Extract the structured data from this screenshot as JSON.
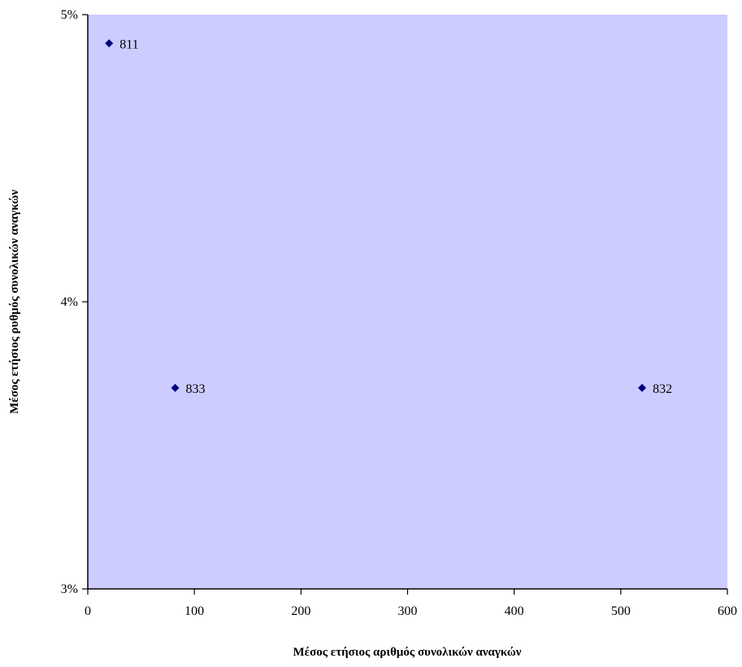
{
  "chart_data": {
    "type": "scatter",
    "title": "",
    "xlabel": "Μέσος ετήσιος αριθμός συνολικών αναγκών",
    "ylabel": "Μέσος ετήσιος ρυθμός συνολικών αναγκών",
    "xlim": [
      0,
      600
    ],
    "ylim": [
      0.03,
      0.05
    ],
    "x_ticks": [
      0,
      100,
      200,
      300,
      400,
      500,
      600
    ],
    "x_tick_labels": [
      "0",
      "100",
      "200",
      "300",
      "400",
      "500",
      "600"
    ],
    "y_ticks": [
      0.03,
      0.04,
      0.05
    ],
    "y_tick_labels": [
      "3%",
      "4%",
      "5%"
    ],
    "grid": false,
    "points": [
      {
        "label": "811",
        "x": 20,
        "y": 0.049
      },
      {
        "label": "833",
        "x": 82,
        "y": 0.037
      },
      {
        "label": "832",
        "x": 520,
        "y": 0.037
      }
    ],
    "colors": {
      "plot_background": "#ccccff",
      "marker": "#000080",
      "axis": "#000000"
    }
  }
}
